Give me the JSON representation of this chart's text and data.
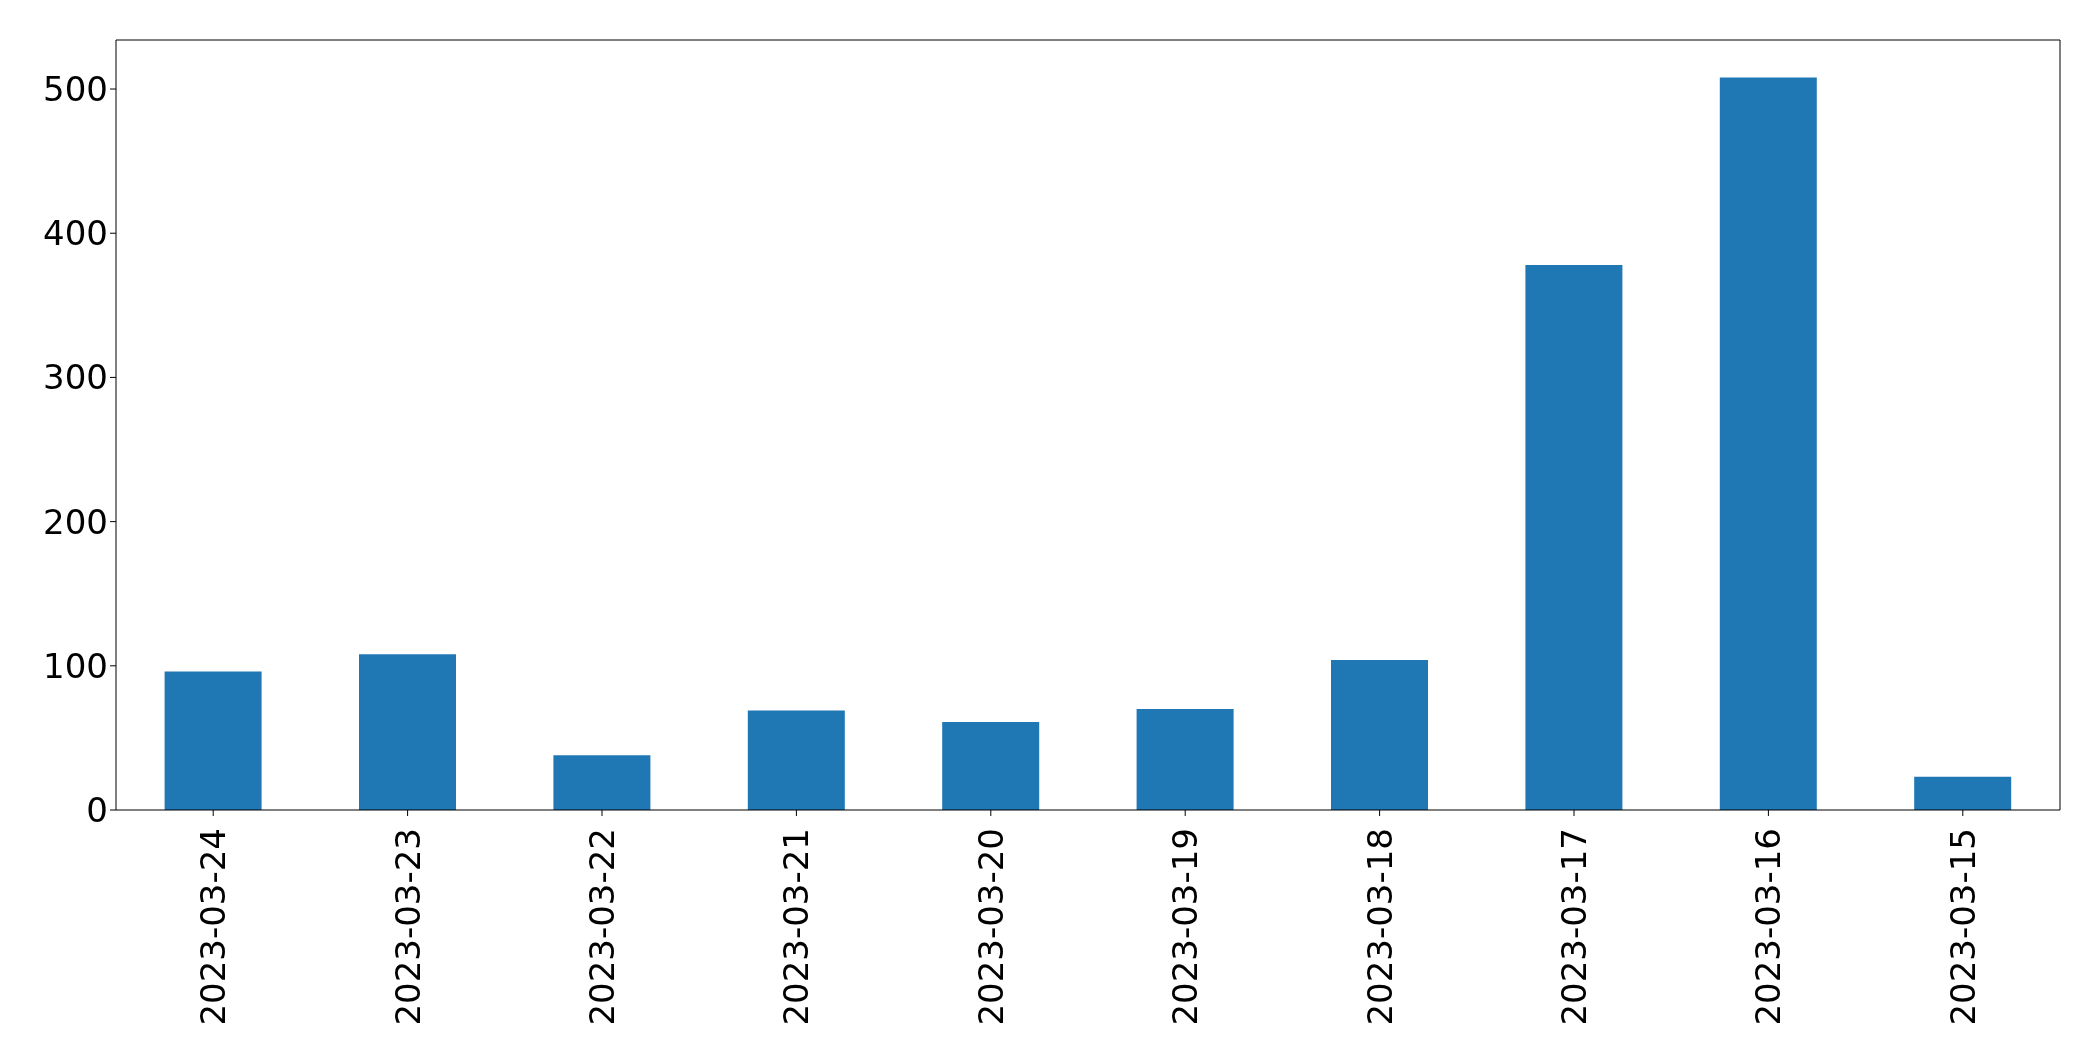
{
  "chart_data": {
    "type": "bar",
    "categories": [
      "2023-03-24",
      "2023-03-23",
      "2023-03-22",
      "2023-03-21",
      "2023-03-20",
      "2023-03-19",
      "2023-03-18",
      "2023-03-17",
      "2023-03-16",
      "2023-03-15"
    ],
    "values": [
      96,
      108,
      38,
      69,
      61,
      70,
      104,
      378,
      508,
      23
    ],
    "color": "#1f77b4",
    "ylim": [
      0,
      534
    ],
    "yticks": [
      0,
      100,
      200,
      300,
      400,
      500
    ],
    "grid": false
  }
}
